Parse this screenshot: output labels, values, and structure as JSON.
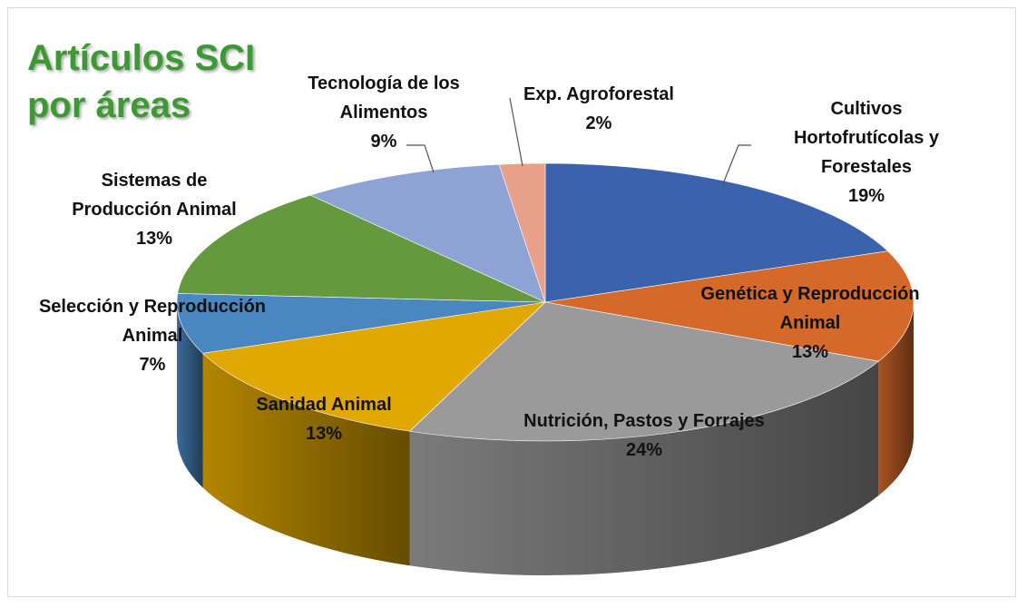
{
  "chart_data": {
    "type": "pie3d",
    "title": "Artículos SCI por áreas",
    "categories": [
      "Cultivos Hortofrutícolas y Forestales",
      "Genética y Reproducción Animal",
      "Nutrición, Pastos y Forrajes",
      "Sanidad Animal",
      "Selección y Reproducción Animal",
      "Sistemas de Producción Animal",
      "Tecnología de los Alimentos",
      "Exp. Agroforestal"
    ],
    "values": [
      19,
      13,
      24,
      13,
      7,
      13,
      9,
      2
    ],
    "value_labels": [
      "19%",
      "13%",
      "24%",
      "13%",
      "7%",
      "13%",
      "9%",
      "2%"
    ],
    "colors": [
      "#3a62ad",
      "#d4692a",
      "#9a9a9a",
      "#e0a800",
      "#4a86c0",
      "#65993e",
      "#8fa2d4",
      "#e8a08a"
    ]
  }
}
